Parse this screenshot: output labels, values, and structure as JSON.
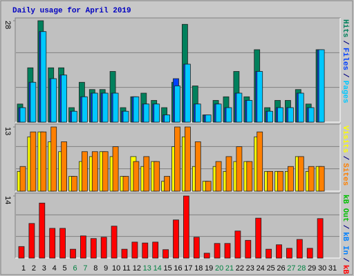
{
  "title": "Daily usage for April 2019",
  "legend_separator": "/",
  "chart_data": [
    {
      "type": "bar",
      "ylim": [
        0,
        28
      ],
      "yticks": [
        28
      ],
      "series": [
        {
          "name": "Hits",
          "color": "#00805C",
          "values": [
            5,
            15,
            28,
            15,
            15,
            4,
            11,
            9,
            9,
            14,
            4,
            7,
            8,
            6,
            4,
            11,
            27,
            10,
            2,
            6,
            7,
            14,
            7,
            20,
            4,
            6,
            6,
            9,
            5,
            20,
            null
          ]
        },
        {
          "name": "Files",
          "color": "#0040FF",
          "values": [
            4,
            11,
            25,
            12,
            13,
            3,
            7,
            8,
            8,
            8,
            3,
            7,
            5,
            5,
            2,
            12,
            16,
            5,
            2,
            5,
            4,
            8,
            6,
            14,
            3,
            4,
            4,
            8,
            4,
            20,
            null
          ]
        },
        {
          "name": "Pages",
          "color": "#00C8FF",
          "values": [
            4,
            11,
            25,
            12,
            13,
            3,
            7,
            8,
            8,
            8,
            3,
            7,
            5,
            5,
            2,
            10,
            16,
            5,
            2,
            5,
            4,
            8,
            6,
            14,
            3,
            4,
            4,
            8,
            4,
            20,
            null
          ]
        }
      ]
    },
    {
      "type": "bar",
      "ylim": [
        0,
        13
      ],
      "yticks": [
        13
      ],
      "series": [
        {
          "name": "Visits",
          "color": "#FFFF00",
          "values": [
            4,
            11,
            12,
            10,
            8,
            3,
            6,
            7,
            8,
            7,
            3,
            7,
            5,
            6,
            2,
            9,
            11,
            5,
            2,
            5,
            4,
            6,
            6,
            11,
            4,
            4,
            4,
            7,
            4,
            5,
            null
          ]
        },
        {
          "name": "Sites",
          "color": "#FF8000",
          "values": [
            5,
            12,
            12,
            13,
            10,
            3,
            8,
            8,
            8,
            9,
            3,
            6,
            7,
            6,
            3,
            13,
            13,
            10,
            2,
            6,
            7,
            9,
            6,
            12,
            4,
            4,
            5,
            7,
            5,
            5,
            null
          ]
        }
      ]
    },
    {
      "type": "bar",
      "ylim": [
        0,
        14
      ],
      "yticks": [
        14
      ],
      "categories": [
        "1",
        "2",
        "3",
        "4",
        "5",
        "6",
        "7",
        "8",
        "9",
        "10",
        "11",
        "12",
        "13",
        "14",
        "15",
        "16",
        "17",
        "18",
        "19",
        "20",
        "21",
        "22",
        "23",
        "24",
        "25",
        "26",
        "27",
        "28",
        "29",
        "30",
        "31"
      ],
      "category_colors": [
        "#000000",
        "#000000",
        "#000000",
        "#000000",
        "#000000",
        "#008040",
        "#008040",
        "#000000",
        "#000000",
        "#000000",
        "#000000",
        "#000000",
        "#008040",
        "#008040",
        "#000000",
        "#000000",
        "#000000",
        "#000000",
        "#000000",
        "#008040",
        "#008040",
        "#000000",
        "#000000",
        "#000000",
        "#000000",
        "#000000",
        "#008040",
        "#008040",
        "#000000",
        "#000000",
        "#000000"
      ],
      "legend": [
        {
          "name": "kB Out",
          "color": "#00C000"
        },
        {
          "name": "kB In",
          "color": "#0080FF"
        }
      ],
      "series": [
        {
          "name": "kB F",
          "color": "#FF0000",
          "values": [
            2.6,
            7.8,
            12.4,
            6.7,
            6.7,
            2,
            5,
            4.4,
            4.7,
            7.2,
            2,
            3.6,
            3.4,
            3.6,
            1.9,
            8.6,
            14,
            4.7,
            1.1,
            3.3,
            3.3,
            6.1,
            4,
            9,
            2,
            3,
            2.2,
            4.2,
            2.2,
            8.9,
            null
          ]
        }
      ]
    }
  ]
}
